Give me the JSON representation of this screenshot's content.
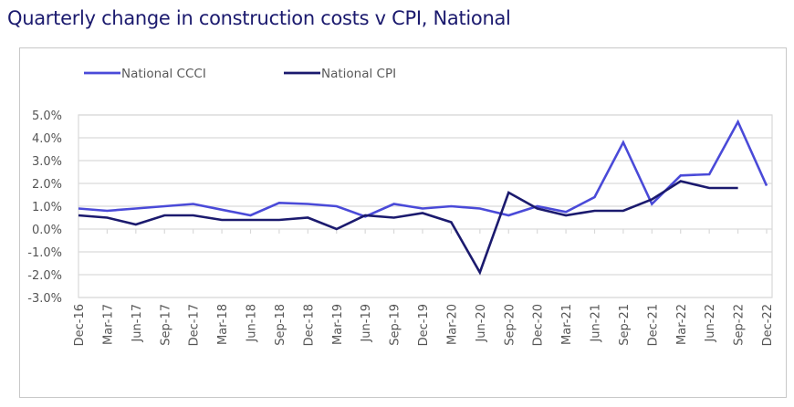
{
  "title": "Quarterly change in construction costs v CPI, National",
  "chart_data": {
    "type": "line",
    "title": "Quarterly change in construction costs v CPI, National",
    "xlabel": "",
    "ylabel": "",
    "ylim": [
      -3.0,
      5.0
    ],
    "yticks": [
      5.0,
      4.0,
      3.0,
      2.0,
      1.0,
      0.0,
      -1.0,
      -2.0,
      -3.0
    ],
    "ytick_labels": [
      "5.0%",
      "4.0%",
      "3.0%",
      "2.0%",
      "1.0%",
      "0.0%",
      "-1.0%",
      "-2.0%",
      "-3.0%"
    ],
    "grid": true,
    "legend_position": "top-left",
    "categories": [
      "Dec-16",
      "Mar-17",
      "Jun-17",
      "Sep-17",
      "Dec-17",
      "Mar-18",
      "Jun-18",
      "Sep-18",
      "Dec-18",
      "Mar-19",
      "Jun-19",
      "Sep-19",
      "Dec-19",
      "Mar-20",
      "Jun-20",
      "Sep-20",
      "Dec-20",
      "Mar-21",
      "Jun-21",
      "Sep-21",
      "Dec-21",
      "Mar-22",
      "Jun-22",
      "Sep-22",
      "Dec-22"
    ],
    "series": [
      {
        "name": "National CCCI",
        "color": "#4a4ad8",
        "values": [
          0.9,
          0.8,
          0.9,
          1.0,
          1.1,
          0.85,
          0.6,
          1.15,
          1.1,
          1.0,
          0.55,
          1.1,
          0.9,
          1.0,
          0.9,
          0.6,
          1.0,
          0.75,
          1.4,
          3.8,
          1.1,
          2.35,
          2.4,
          4.7,
          1.9
        ]
      },
      {
        "name": "National CPI",
        "color": "#1b1a6e",
        "values": [
          0.6,
          0.5,
          0.2,
          0.6,
          0.6,
          0.4,
          0.4,
          0.4,
          0.5,
          0.0,
          0.6,
          0.5,
          0.7,
          0.3,
          -1.9,
          1.6,
          0.9,
          0.6,
          0.8,
          0.8,
          1.3,
          2.1,
          1.8,
          1.8,
          null
        ]
      }
    ]
  }
}
